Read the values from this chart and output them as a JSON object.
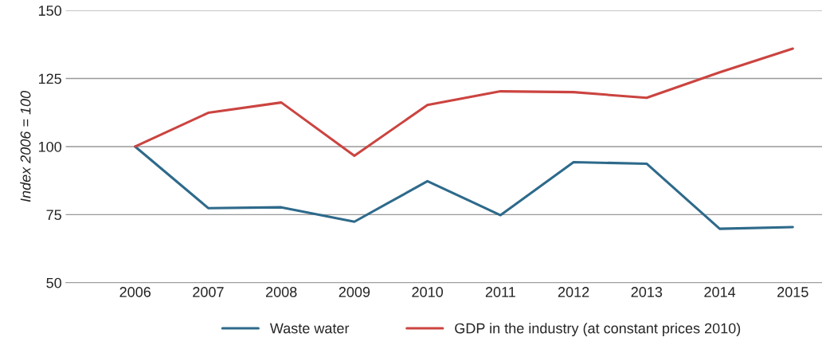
{
  "chart_data": {
    "type": "line",
    "ylabel": "Index 2006 = 100",
    "categories": [
      "2006",
      "2007",
      "2008",
      "2009",
      "2010",
      "2011",
      "2012",
      "2013",
      "2014",
      "2015"
    ],
    "series": [
      {
        "name": "Waste water",
        "color": "#2e6a8b",
        "values": [
          100,
          77.4,
          77.7,
          72.4,
          87.3,
          74.8,
          94.3,
          93.7,
          69.8,
          70.4
        ]
      },
      {
        "name": "GDP in the industry (at constant prices 2010)",
        "color": "#cb4440",
        "values": [
          100,
          112.4,
          116.2,
          96.6,
          115.3,
          120.3,
          120,
          117.9,
          127.3,
          136
        ]
      }
    ],
    "ylim": [
      50,
      150
    ],
    "yticks": [
      50,
      75,
      100,
      125,
      150
    ],
    "grid": "y",
    "legend": "bottom",
    "marker": "none",
    "line_style": "solid"
  }
}
